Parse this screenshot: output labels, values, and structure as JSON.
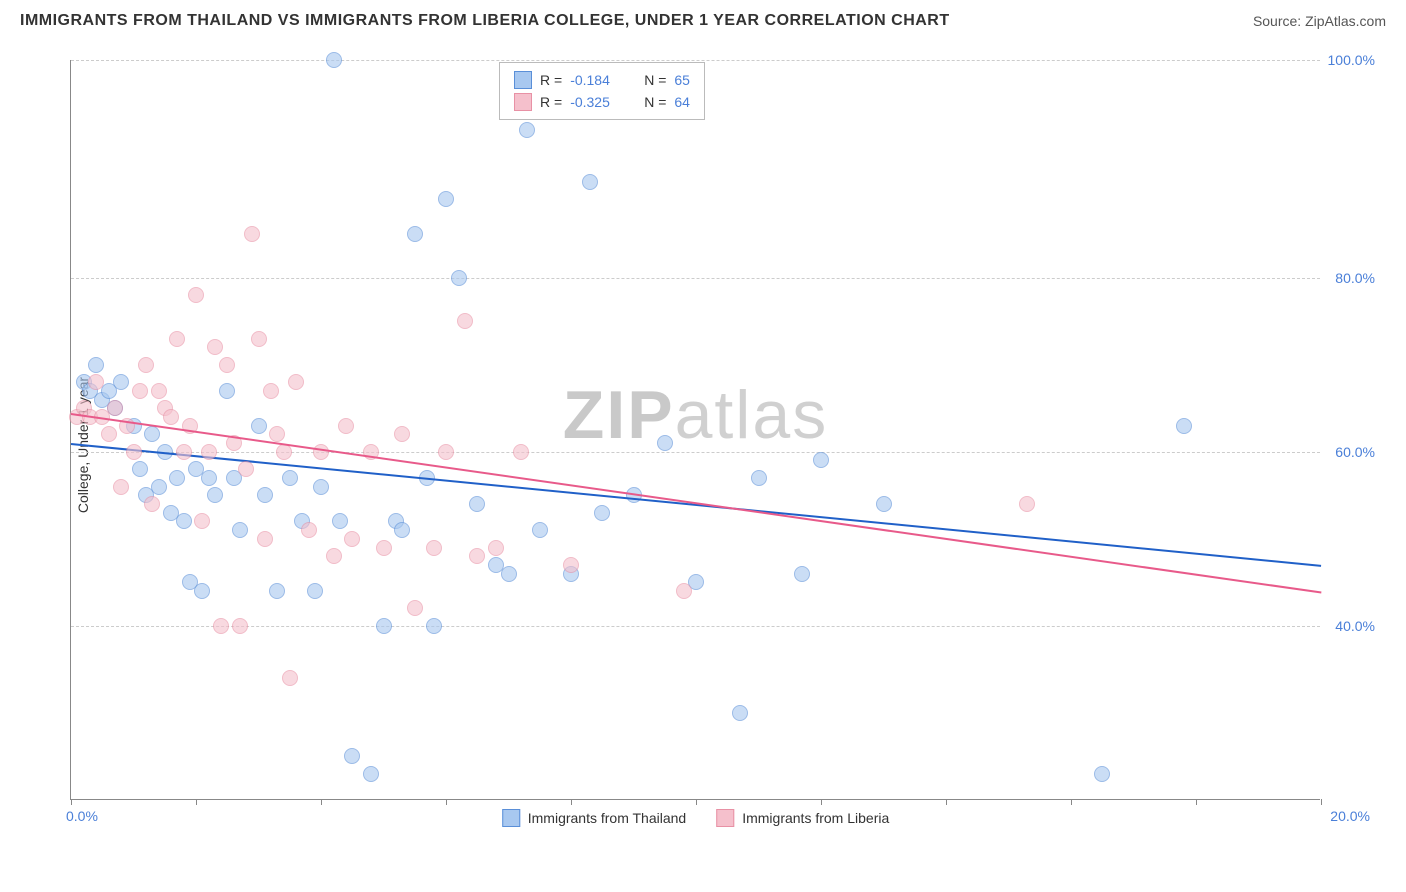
{
  "title": "IMMIGRANTS FROM THAILAND VS IMMIGRANTS FROM LIBERIA COLLEGE, UNDER 1 YEAR CORRELATION CHART",
  "source": "Source: ZipAtlas.com",
  "y_axis_label": "College, Under 1 year",
  "watermark": "ZIPatlas",
  "chart": {
    "type": "scatter",
    "xlim": [
      0,
      20
    ],
    "ylim": [
      20,
      105
    ],
    "x_ticks": [
      0,
      2,
      4,
      6,
      8,
      10,
      12,
      14,
      16,
      18,
      20
    ],
    "y_gridlines": [
      40,
      60,
      80,
      105
    ],
    "y_tick_labels": [
      "40.0%",
      "60.0%",
      "80.0%",
      "100.0%"
    ],
    "x_tick_label_left": "0.0%",
    "x_tick_label_right": "20.0%",
    "background_color": "#ffffff",
    "grid_color": "#cccccc",
    "axis_color": "#888888",
    "point_radius": 8,
    "point_opacity": 0.6
  },
  "series": [
    {
      "name": "Immigrants from Thailand",
      "fill_color": "#a8c8f0",
      "border_color": "#5a8fd8",
      "line_color": "#2060c8",
      "R": "-0.184",
      "N": "65",
      "trend": {
        "x1": 0,
        "y1": 61,
        "x2": 20,
        "y2": 47
      },
      "points": [
        [
          0.2,
          68
        ],
        [
          0.3,
          67
        ],
        [
          0.4,
          70
        ],
        [
          0.5,
          66
        ],
        [
          0.6,
          67
        ],
        [
          0.7,
          65
        ],
        [
          0.8,
          68
        ],
        [
          1.0,
          63
        ],
        [
          1.1,
          58
        ],
        [
          1.2,
          55
        ],
        [
          1.3,
          62
        ],
        [
          1.4,
          56
        ],
        [
          1.5,
          60
        ],
        [
          1.6,
          53
        ],
        [
          1.7,
          57
        ],
        [
          1.8,
          52
        ],
        [
          1.9,
          45
        ],
        [
          2.0,
          58
        ],
        [
          2.1,
          44
        ],
        [
          2.2,
          57
        ],
        [
          2.3,
          55
        ],
        [
          2.5,
          67
        ],
        [
          2.6,
          57
        ],
        [
          2.7,
          51
        ],
        [
          3.0,
          63
        ],
        [
          3.1,
          55
        ],
        [
          3.3,
          44
        ],
        [
          3.5,
          57
        ],
        [
          3.7,
          52
        ],
        [
          3.9,
          44
        ],
        [
          4.0,
          56
        ],
        [
          4.2,
          105
        ],
        [
          4.3,
          52
        ],
        [
          4.5,
          25
        ],
        [
          4.8,
          23
        ],
        [
          5.0,
          40
        ],
        [
          5.2,
          52
        ],
        [
          5.3,
          51
        ],
        [
          5.5,
          85
        ],
        [
          5.7,
          57
        ],
        [
          5.8,
          40
        ],
        [
          6.0,
          89
        ],
        [
          6.2,
          80
        ],
        [
          6.5,
          54
        ],
        [
          6.8,
          47
        ],
        [
          7.0,
          46
        ],
        [
          7.3,
          97
        ],
        [
          7.5,
          51
        ],
        [
          8.0,
          46
        ],
        [
          8.3,
          91
        ],
        [
          8.5,
          53
        ],
        [
          9.0,
          55
        ],
        [
          9.5,
          61
        ],
        [
          10.0,
          45
        ],
        [
          10.7,
          30
        ],
        [
          11.0,
          57
        ],
        [
          11.7,
          46
        ],
        [
          12.0,
          59
        ],
        [
          13.0,
          54
        ],
        [
          16.5,
          23
        ],
        [
          17.8,
          63
        ]
      ]
    },
    {
      "name": "Immigrants from Liberia",
      "fill_color": "#f5c0cc",
      "border_color": "#e891a5",
      "line_color": "#e85a8a",
      "R": "-0.325",
      "N": "64",
      "trend": {
        "x1": 0,
        "y1": 64.5,
        "x2": 20,
        "y2": 44
      },
      "points": [
        [
          0.1,
          64
        ],
        [
          0.2,
          65
        ],
        [
          0.3,
          64
        ],
        [
          0.4,
          68
        ],
        [
          0.5,
          64
        ],
        [
          0.6,
          62
        ],
        [
          0.7,
          65
        ],
        [
          0.8,
          56
        ],
        [
          0.9,
          63
        ],
        [
          1.0,
          60
        ],
        [
          1.1,
          67
        ],
        [
          1.2,
          70
        ],
        [
          1.3,
          54
        ],
        [
          1.4,
          67
        ],
        [
          1.5,
          65
        ],
        [
          1.6,
          64
        ],
        [
          1.7,
          73
        ],
        [
          1.8,
          60
        ],
        [
          1.9,
          63
        ],
        [
          2.0,
          78
        ],
        [
          2.1,
          52
        ],
        [
          2.2,
          60
        ],
        [
          2.3,
          72
        ],
        [
          2.4,
          40
        ],
        [
          2.5,
          70
        ],
        [
          2.6,
          61
        ],
        [
          2.7,
          40
        ],
        [
          2.8,
          58
        ],
        [
          2.9,
          85
        ],
        [
          3.0,
          73
        ],
        [
          3.1,
          50
        ],
        [
          3.2,
          67
        ],
        [
          3.3,
          62
        ],
        [
          3.4,
          60
        ],
        [
          3.5,
          34
        ],
        [
          3.6,
          68
        ],
        [
          3.8,
          51
        ],
        [
          4.0,
          60
        ],
        [
          4.2,
          48
        ],
        [
          4.4,
          63
        ],
        [
          4.5,
          50
        ],
        [
          4.8,
          60
        ],
        [
          5.0,
          49
        ],
        [
          5.3,
          62
        ],
        [
          5.5,
          42
        ],
        [
          5.8,
          49
        ],
        [
          6.0,
          60
        ],
        [
          6.3,
          75
        ],
        [
          6.5,
          48
        ],
        [
          6.8,
          49
        ],
        [
          7.2,
          60
        ],
        [
          8.0,
          47
        ],
        [
          9.8,
          44
        ],
        [
          15.3,
          54
        ]
      ]
    }
  ],
  "legend_bottom": [
    {
      "swatch_fill": "#a8c8f0",
      "swatch_border": "#5a8fd8",
      "label": "Immigrants from Thailand"
    },
    {
      "swatch_fill": "#f5c0cc",
      "swatch_border": "#e891a5",
      "label": "Immigrants from Liberia"
    }
  ]
}
